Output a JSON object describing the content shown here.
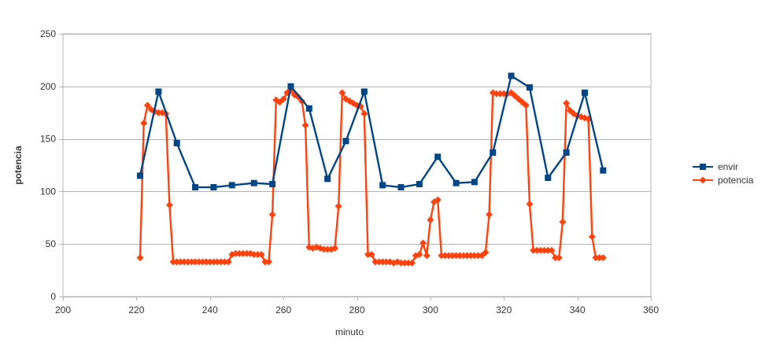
{
  "chart_data": {
    "type": "line",
    "title": "",
    "xlabel": "minuto",
    "ylabel": "potencia",
    "xlim": [
      200,
      360
    ],
    "ylim": [
      0,
      250
    ],
    "x_ticks": [
      200,
      220,
      240,
      260,
      280,
      300,
      320,
      340,
      360
    ],
    "y_ticks": [
      0,
      50,
      100,
      150,
      200,
      250
    ],
    "grid": "horizontal",
    "legend_position": "right",
    "series": [
      {
        "name": "envir",
        "color": "#004586",
        "marker": "square",
        "points": [
          [
            221,
            115
          ],
          [
            226,
            195
          ],
          [
            231,
            146
          ],
          [
            236,
            104
          ],
          [
            241,
            104
          ],
          [
            246,
            106
          ],
          [
            252,
            108
          ],
          [
            257,
            107
          ],
          [
            262,
            200
          ],
          [
            267,
            179
          ],
          [
            272,
            112
          ],
          [
            277,
            148
          ],
          [
            282,
            195
          ],
          [
            287,
            106
          ],
          [
            292,
            104
          ],
          [
            297,
            107
          ],
          [
            302,
            133
          ],
          [
            307,
            108
          ],
          [
            312,
            109
          ],
          [
            317,
            137
          ],
          [
            322,
            210
          ],
          [
            327,
            199
          ],
          [
            332,
            113
          ],
          [
            337,
            137
          ],
          [
            342,
            194
          ],
          [
            347,
            120
          ]
        ]
      },
      {
        "name": "potencia",
        "color": "#ff420e",
        "marker": "diamond",
        "points": [
          [
            221,
            37
          ],
          [
            222,
            165
          ],
          [
            223,
            182
          ],
          [
            224,
            178
          ],
          [
            225,
            176
          ],
          [
            226,
            175
          ],
          [
            227,
            175
          ],
          [
            228,
            174
          ],
          [
            229,
            87
          ],
          [
            230,
            33
          ],
          [
            231,
            33
          ],
          [
            232,
            33
          ],
          [
            233,
            33
          ],
          [
            234,
            33
          ],
          [
            235,
            33
          ],
          [
            236,
            33
          ],
          [
            237,
            33
          ],
          [
            238,
            33
          ],
          [
            239,
            33
          ],
          [
            240,
            33
          ],
          [
            241,
            33
          ],
          [
            242,
            33
          ],
          [
            243,
            33
          ],
          [
            244,
            33
          ],
          [
            245,
            33
          ],
          [
            246,
            40
          ],
          [
            247,
            41
          ],
          [
            248,
            41
          ],
          [
            249,
            41
          ],
          [
            250,
            41
          ],
          [
            251,
            41
          ],
          [
            252,
            40
          ],
          [
            253,
            40
          ],
          [
            254,
            40
          ],
          [
            255,
            33
          ],
          [
            256,
            33
          ],
          [
            257,
            78
          ],
          [
            258,
            187
          ],
          [
            259,
            185
          ],
          [
            260,
            188
          ],
          [
            261,
            194
          ],
          [
            262,
            196
          ],
          [
            263,
            192
          ],
          [
            264,
            190
          ],
          [
            265,
            186
          ],
          [
            266,
            163
          ],
          [
            267,
            47
          ],
          [
            268,
            46
          ],
          [
            269,
            47
          ],
          [
            270,
            46
          ],
          [
            271,
            45
          ],
          [
            272,
            45
          ],
          [
            273,
            45
          ],
          [
            274,
            46
          ],
          [
            275,
            86
          ],
          [
            276,
            194
          ],
          [
            277,
            188
          ],
          [
            278,
            186
          ],
          [
            279,
            184
          ],
          [
            280,
            182
          ],
          [
            281,
            181
          ],
          [
            282,
            174
          ],
          [
            283,
            40
          ],
          [
            284,
            40
          ],
          [
            285,
            33
          ],
          [
            286,
            33
          ],
          [
            287,
            33
          ],
          [
            288,
            33
          ],
          [
            289,
            33
          ],
          [
            290,
            32
          ],
          [
            291,
            33
          ],
          [
            292,
            32
          ],
          [
            293,
            32
          ],
          [
            294,
            32
          ],
          [
            295,
            32
          ],
          [
            296,
            39
          ],
          [
            297,
            40
          ],
          [
            298,
            51
          ],
          [
            299,
            39
          ],
          [
            300,
            73
          ],
          [
            301,
            90
          ],
          [
            302,
            92
          ],
          [
            303,
            39
          ],
          [
            304,
            39
          ],
          [
            305,
            39
          ],
          [
            306,
            39
          ],
          [
            307,
            39
          ],
          [
            308,
            39
          ],
          [
            309,
            39
          ],
          [
            310,
            39
          ],
          [
            311,
            39
          ],
          [
            312,
            39
          ],
          [
            313,
            39
          ],
          [
            314,
            39
          ],
          [
            315,
            42
          ],
          [
            316,
            78
          ],
          [
            317,
            194
          ],
          [
            318,
            193
          ],
          [
            319,
            193
          ],
          [
            320,
            193
          ],
          [
            321,
            193
          ],
          [
            322,
            194
          ],
          [
            323,
            191
          ],
          [
            324,
            188
          ],
          [
            325,
            185
          ],
          [
            326,
            182
          ],
          [
            327,
            88
          ],
          [
            328,
            44
          ],
          [
            329,
            44
          ],
          [
            330,
            44
          ],
          [
            331,
            44
          ],
          [
            332,
            44
          ],
          [
            333,
            44
          ],
          [
            334,
            37
          ],
          [
            335,
            37
          ],
          [
            336,
            71
          ],
          [
            337,
            184
          ],
          [
            338,
            177
          ],
          [
            339,
            174
          ],
          [
            340,
            172
          ],
          [
            341,
            171
          ],
          [
            342,
            170
          ],
          [
            343,
            169
          ],
          [
            344,
            57
          ],
          [
            345,
            37
          ],
          [
            346,
            37
          ],
          [
            347,
            37
          ]
        ]
      }
    ]
  }
}
